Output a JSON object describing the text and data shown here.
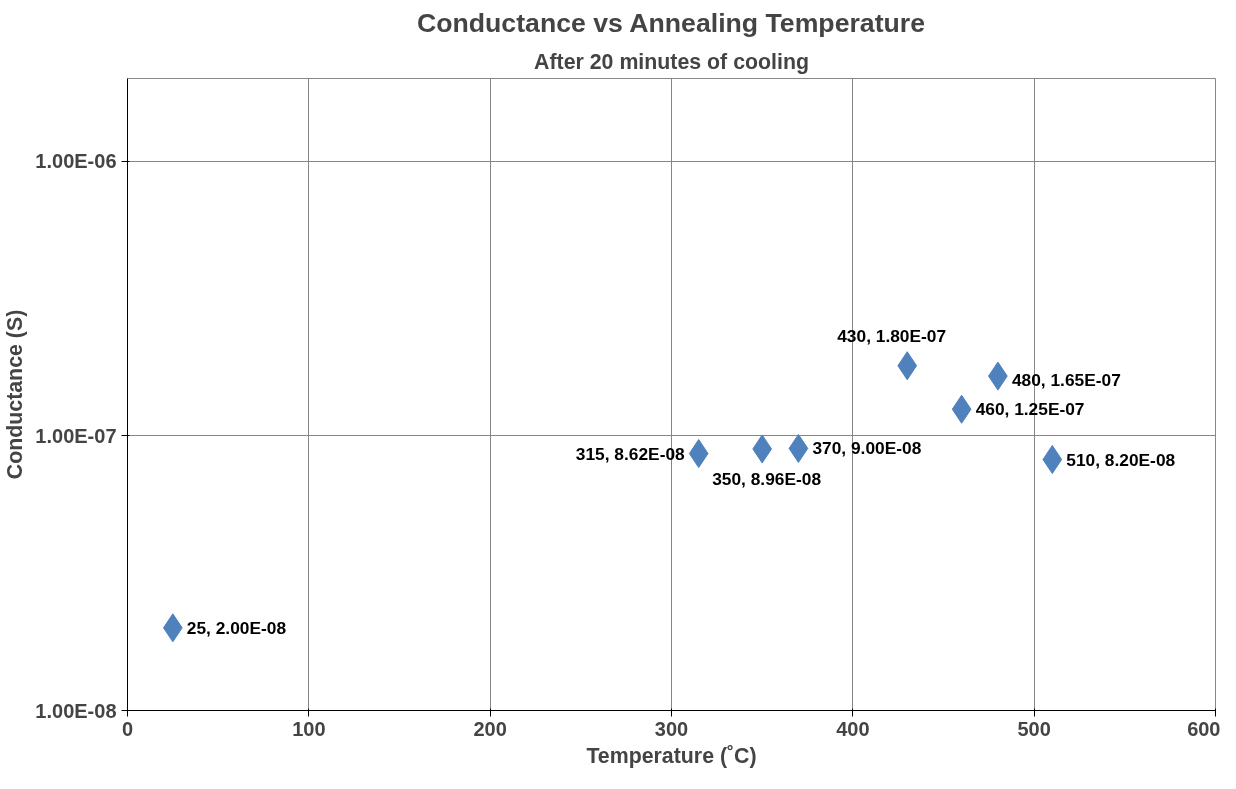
{
  "chart_data": {
    "type": "scatter",
    "title": "Conductance vs Annealing Temperature",
    "subtitle": "After 20 minutes of cooling",
    "xlabel": "Temperature (˚C)",
    "ylabel": "Conductance (S)",
    "x": [
      25,
      315,
      350,
      370,
      430,
      460,
      480,
      510
    ],
    "series": [
      {
        "color": "#4f81bd",
        "values": [
          2e-08,
          8.62e-08,
          8.96e-08,
          9e-08,
          1.8e-07,
          1.25e-07,
          1.65e-07,
          8.2e-08
        ],
        "value_labels": [
          "25, 2.00E-08",
          "315, 8.62E-08",
          "350, 8.96E-08",
          "370, 9.00E-08",
          "430, 1.80E-07",
          "460, 1.25E-07",
          "480, 1.65E-07",
          "510, 8.20E-08"
        ]
      }
    ],
    "xlim": [
      0,
      600
    ],
    "xticks": [
      0,
      100,
      200,
      300,
      400,
      500,
      600
    ],
    "ylim": [
      1e-08,
      2e-06
    ],
    "yticks": [
      {
        "value": 1e-08,
        "label": "1.00E-08"
      },
      {
        "value": 1e-07,
        "label": "1.00E-07"
      },
      {
        "value": 1e-06,
        "label": "1.00E-06"
      }
    ],
    "log": "y",
    "grid": true,
    "marker": "diamond"
  }
}
